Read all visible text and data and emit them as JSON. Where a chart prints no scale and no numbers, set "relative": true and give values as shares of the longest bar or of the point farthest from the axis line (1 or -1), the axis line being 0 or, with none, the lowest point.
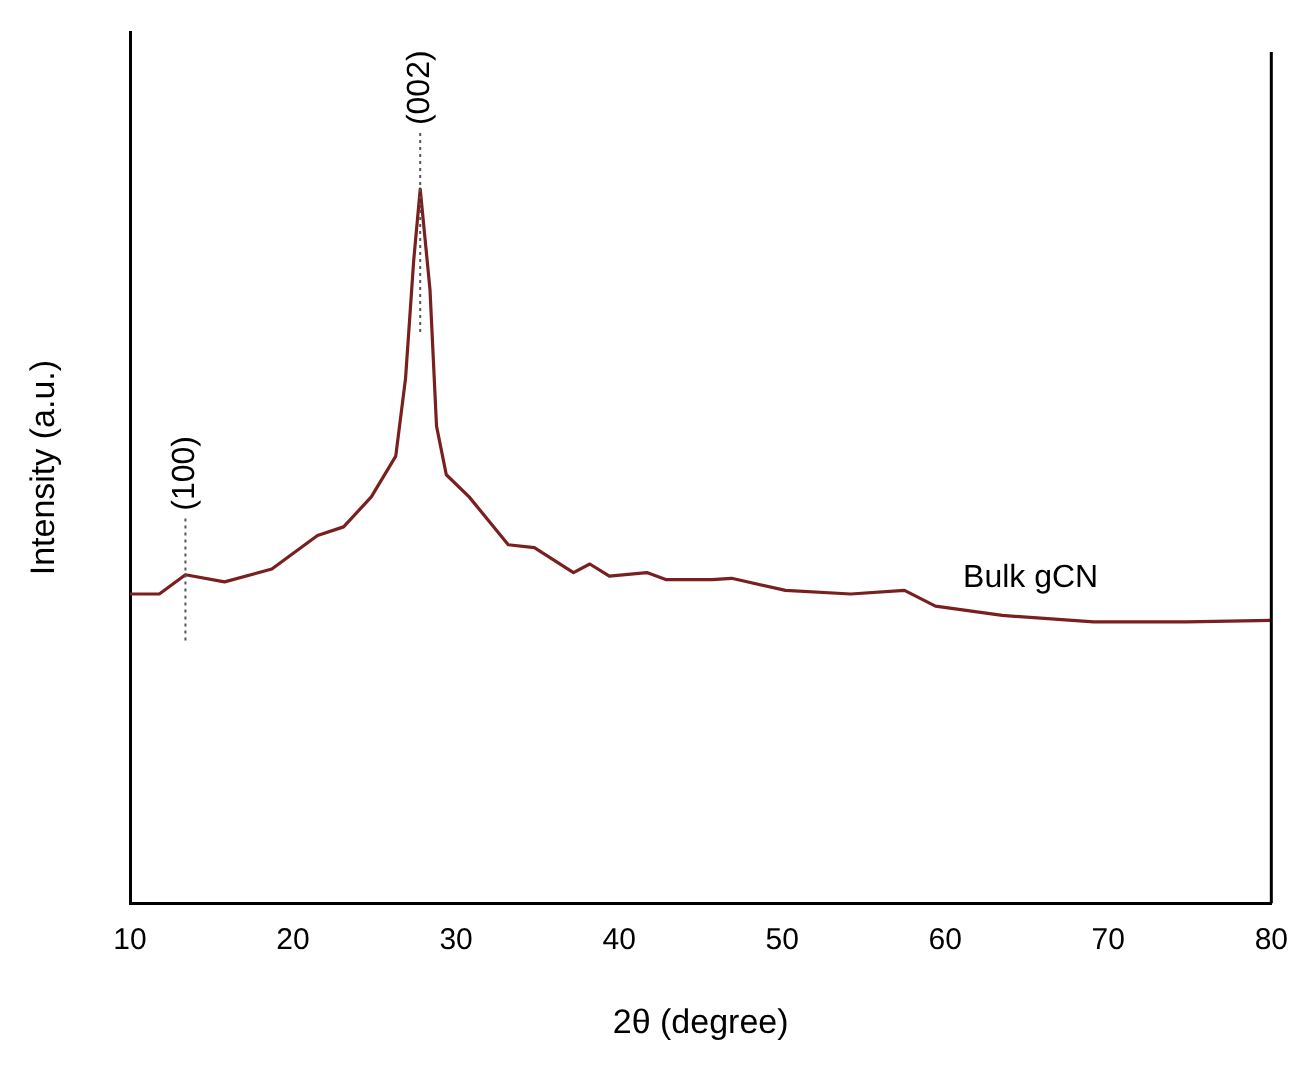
{
  "chart_data": {
    "type": "line",
    "xlabel": "2θ (degree)",
    "ylabel": "Intensity (a.u.)",
    "relative": true,
    "xlim": [
      10,
      80
    ],
    "xticks": [
      10,
      20,
      30,
      40,
      50,
      60,
      70,
      80
    ],
    "grid": false,
    "legend": false,
    "marker": "none",
    "line_style": "solid",
    "ref_lines": [
      {
        "axis": "x",
        "value": 13.4,
        "color": "#555555",
        "line_style": "dotted"
      },
      {
        "axis": "x",
        "value": 27.8,
        "color": "#555555",
        "line_style": "dotted"
      }
    ],
    "annotations": [
      {
        "text": "(100)",
        "x": 13.4,
        "y": 0.46
      },
      {
        "text": "(002)",
        "x": 27.8,
        "y": 1
      }
    ],
    "series": [
      {
        "name": "Bulk gCN",
        "color": "#7a1f1f",
        "x": [
          10,
          10.2,
          11.8,
          13.4,
          15.8,
          18.7,
          21.5,
          23.1,
          24.8,
          26.3,
          26.9,
          27.4,
          27.8,
          28.4,
          28.8,
          29.4,
          30.8,
          33.2,
          34.8,
          37.2,
          38.2,
          39.4,
          41.7,
          42.9,
          45.7,
          46.9,
          50.2,
          54.2,
          57.5,
          59.4,
          63.5,
          69.1,
          74.8,
          80
        ],
        "values": [
          0.433,
          0.433,
          0.433,
          0.46,
          0.45,
          0.468,
          0.515,
          0.527,
          0.569,
          0.626,
          0.735,
          0.9,
          1,
          0.859,
          0.668,
          0.6,
          0.569,
          0.502,
          0.498,
          0.463,
          0.475,
          0.458,
          0.463,
          0.453,
          0.453,
          0.455,
          0.438,
          0.433,
          0.438,
          0.416,
          0.403,
          0.394,
          0.394,
          0.396
        ]
      }
    ]
  }
}
